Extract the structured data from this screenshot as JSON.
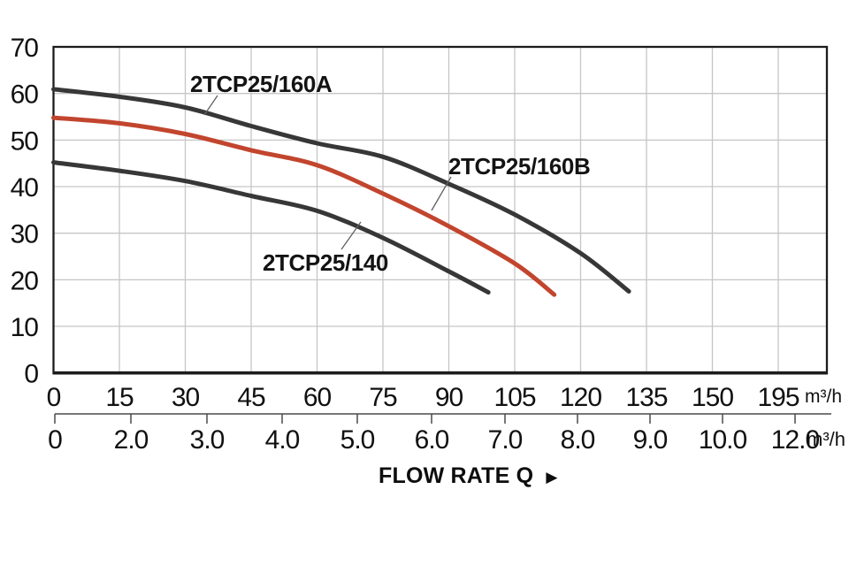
{
  "page": {
    "background": "#ffffff"
  },
  "chart_data": {
    "type": "line",
    "title": "",
    "xlabel": "FLOW RATE Q",
    "xlabel_arrow": "▶",
    "ylabel": "",
    "grid": true,
    "legend_position": "inline-curve-labels",
    "y_axis": {
      "ticks": [
        0,
        10,
        20,
        30,
        40,
        50,
        60,
        70
      ],
      "range": [
        0,
        70
      ]
    },
    "x_axis_primary": {
      "tick_labels": [
        "0",
        "15",
        "30",
        "45",
        "60",
        "75",
        "90",
        "105",
        "120",
        "135",
        "150",
        "195"
      ],
      "unit": "m³/h"
    },
    "x_axis_secondary": {
      "tick_labels": [
        "0",
        "2.0",
        "3.0",
        "4.0",
        "5.0",
        "6.0",
        "7.0",
        "8.0",
        "9.0",
        "10.0",
        "12.0"
      ],
      "unit": "m³/h"
    },
    "series": [
      {
        "name": "2TCP25/160A",
        "color": "#373737",
        "points": [
          [
            0,
            60.9
          ],
          [
            15,
            59.3
          ],
          [
            30,
            57.0
          ],
          [
            45,
            53.0
          ],
          [
            60,
            49.3
          ],
          [
            75,
            46.4
          ],
          [
            90,
            40.6
          ],
          [
            105,
            34.0
          ],
          [
            120,
            25.7
          ],
          [
            131,
            17.5
          ]
        ]
      },
      {
        "name": "2TCP25/160B",
        "color": "#c2452e",
        "points": [
          [
            0,
            54.8
          ],
          [
            15,
            53.6
          ],
          [
            30,
            51.3
          ],
          [
            45,
            47.8
          ],
          [
            60,
            44.6
          ],
          [
            75,
            38.5
          ],
          [
            90,
            31.5
          ],
          [
            105,
            23.5
          ],
          [
            114,
            16.8
          ]
        ]
      },
      {
        "name": "2TCP25/140",
        "color": "#373737",
        "points": [
          [
            0,
            45.2
          ],
          [
            15,
            43.4
          ],
          [
            30,
            41.2
          ],
          [
            45,
            38.0
          ],
          [
            60,
            34.8
          ],
          [
            75,
            29.0
          ],
          [
            90,
            21.8
          ],
          [
            99,
            17.3
          ]
        ]
      }
    ]
  },
  "colors": {
    "grid": "#c6c6c6",
    "axis_box": "#1c1c1c",
    "ruler": "#4a4a4a",
    "leader": "#606060",
    "text": "#111111"
  }
}
